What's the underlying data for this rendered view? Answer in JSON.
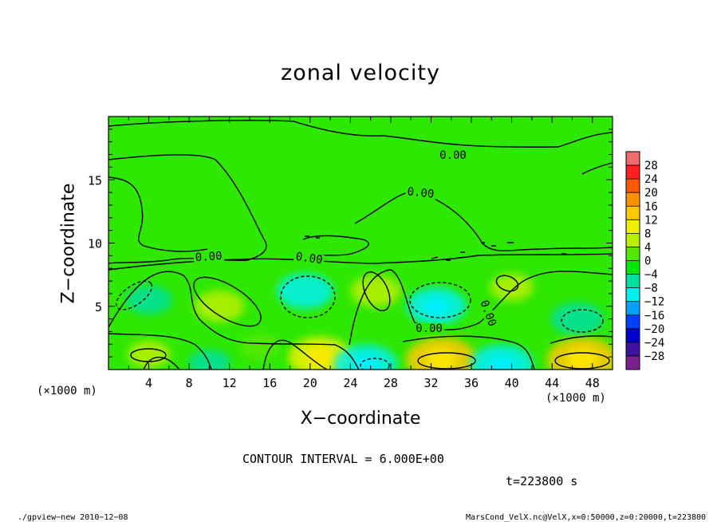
{
  "title": "zonal velocity",
  "xlabel": "X−coordinate",
  "ylabel": "Z−coordinate",
  "x_unit": "(×1000 m)",
  "contour_interval": "CONTOUR INTERVAL = 6.000E+00",
  "time_label": "t=223800 s",
  "footer": {
    "left": "./gpview−new   2010−12−08",
    "right": "MarsCond_VelX.nc@VelX,x=0:50000,z=0:20000,t=223800"
  },
  "chart_data": {
    "type": "heatmap",
    "title": "zonal velocity",
    "xlabel": "X−coordinate",
    "ylabel": "Z−coordinate",
    "x_unit": "(×1000 m)",
    "xlim": [
      0,
      50
    ],
    "ylim": [
      0,
      20
    ],
    "x_ticks": [
      4,
      8,
      12,
      16,
      20,
      24,
      28,
      32,
      36,
      40,
      44,
      48
    ],
    "y_ticks": [
      5,
      10,
      15
    ],
    "contour_labels": [
      "0.00",
      "0.00",
      "0.00",
      "0.00",
      "0.00",
      "0.00"
    ],
    "contour_interval": 6.0,
    "colorbar": {
      "levels": [
        28,
        24,
        20,
        16,
        12,
        8,
        4,
        0,
        -4,
        -8,
        -12,
        -16,
        -20,
        -24,
        -28
      ],
      "label_text": [
        "28",
        "24",
        "20",
        "16",
        "12",
        "8",
        "4",
        "0",
        "−4",
        "−8",
        "−12",
        "−16",
        "−20",
        "−24",
        "−28"
      ],
      "colors": [
        "#f06a6a",
        "#ff2020",
        "#ff5a00",
        "#ff9000",
        "#ffc800",
        "#eef000",
        "#b8f000",
        "#56e800",
        "#00e800",
        "#00e0a0",
        "#00f0f0",
        "#00a0ff",
        "#0040ff",
        "#0000c8",
        "#4010a0",
        "#7a2090"
      ]
    },
    "anomalies": [
      {
        "x": 4,
        "z": 5.5,
        "value": -5
      },
      {
        "x": 11,
        "z": 5.0,
        "value": 6
      },
      {
        "x": 19.5,
        "z": 6.2,
        "value": -8
      },
      {
        "x": 26.5,
        "z": 6.2,
        "value": 6
      },
      {
        "x": 32.5,
        "z": 5.0,
        "value": -9
      },
      {
        "x": 40,
        "z": 6.5,
        "value": 4
      },
      {
        "x": 46.5,
        "z": 4.0,
        "value": -7
      },
      {
        "x": 4,
        "z": 1.2,
        "value": 4
      },
      {
        "x": 10,
        "z": 0.5,
        "value": -4
      },
      {
        "x": 21,
        "z": 1.0,
        "value": 10
      },
      {
        "x": 25.5,
        "z": 0.4,
        "value": -10
      },
      {
        "x": 33,
        "z": 0.8,
        "value": 12
      },
      {
        "x": 39,
        "z": 0.4,
        "value": -10
      },
      {
        "x": 47,
        "z": 0.8,
        "value": 12
      },
      {
        "x": 15,
        "z": 1.8,
        "value": 3
      }
    ]
  }
}
